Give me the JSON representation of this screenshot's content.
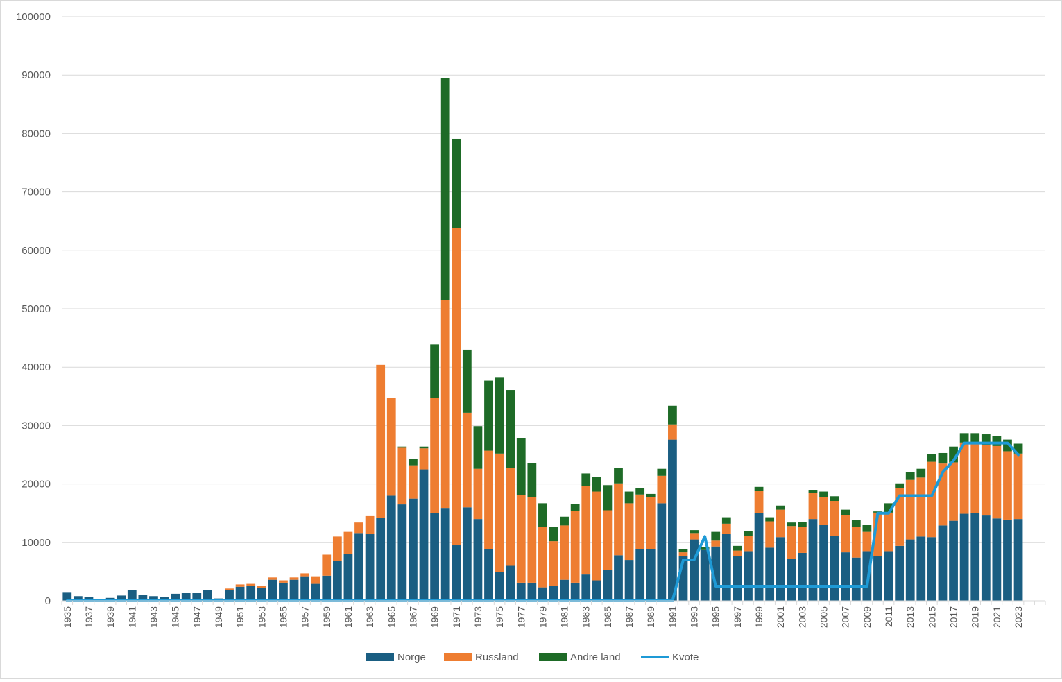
{
  "chart_data": {
    "type": "bar",
    "stacked": true,
    "title": "",
    "xlabel": "",
    "ylabel": "",
    "ylim": [
      0,
      100000
    ],
    "yticks": [
      0,
      10000,
      20000,
      30000,
      40000,
      50000,
      60000,
      70000,
      80000,
      90000,
      100000
    ],
    "grid": true,
    "legend_position": "bottom",
    "years": [
      1935,
      1936,
      1937,
      1938,
      1939,
      1940,
      1941,
      1942,
      1943,
      1944,
      1945,
      1946,
      1947,
      1948,
      1949,
      1950,
      1951,
      1952,
      1953,
      1954,
      1955,
      1956,
      1957,
      1958,
      1959,
      1960,
      1961,
      1962,
      1963,
      1964,
      1965,
      1966,
      1967,
      1968,
      1969,
      1970,
      1971,
      1972,
      1973,
      1974,
      1975,
      1976,
      1977,
      1978,
      1979,
      1980,
      1981,
      1982,
      1983,
      1984,
      1985,
      1986,
      1987,
      1988,
      1989,
      1990,
      1991,
      1992,
      1993,
      1994,
      1995,
      1996,
      1997,
      1998,
      1999,
      2000,
      2001,
      2002,
      2003,
      2004,
      2005,
      2006,
      2007,
      2008,
      2009,
      2010,
      2011,
      2012,
      2013,
      2014,
      2015,
      2016,
      2017,
      2018,
      2019,
      2020,
      2021,
      2022,
      2023
    ],
    "tick_labels": [
      "1935",
      "1937",
      "1939",
      "1941",
      "1943",
      "1945",
      "1947",
      "1949",
      "1951",
      "1953",
      "1955",
      "1957",
      "1959",
      "1961",
      "1963",
      "1965",
      "1967",
      "1969",
      "1971",
      "1973",
      "1975",
      "1977",
      "1979",
      "1981",
      "1983",
      "1985",
      "1987",
      "1989",
      "1991",
      "1993",
      "1995",
      "1997",
      "1999",
      "2001",
      "2003",
      "2005",
      "2007",
      "2009",
      "2011",
      "2013",
      "2015",
      "2017",
      "2019",
      "2021",
      "2023"
    ],
    "series": [
      {
        "name": "Norge",
        "color": "#1a5e82",
        "values": [
          1500,
          800,
          700,
          300,
          500,
          900,
          1800,
          1000,
          800,
          700,
          1200,
          1400,
          1400,
          1900,
          400,
          1900,
          2400,
          2500,
          2200,
          3600,
          3100,
          3600,
          4200,
          2900,
          4300,
          6800,
          8000,
          11600,
          11400,
          14200,
          18000,
          16500,
          17500,
          22500,
          15000,
          15900,
          9500,
          16000,
          14000,
          8900,
          4900,
          6000,
          3100,
          3100,
          2300,
          2600,
          3600,
          3100,
          4500,
          3500,
          5300,
          7800,
          7000,
          8900,
          8800,
          16700,
          27600,
          7600,
          10500,
          8700,
          9300,
          11500,
          7600,
          8500,
          15000,
          9100,
          10900,
          7200,
          8200,
          14000,
          13000,
          11100,
          8300,
          7400,
          8500,
          7600,
          8500,
          9400,
          10500,
          11000,
          10900,
          12900,
          13700,
          14900,
          15000,
          14600,
          14100,
          13900,
          14000
        ]
      },
      {
        "name": "Russland",
        "color": "#ee7d31",
        "values": [
          0,
          0,
          0,
          0,
          0,
          0,
          0,
          0,
          0,
          0,
          0,
          0,
          0,
          0,
          0,
          200,
          400,
          400,
          400,
          400,
          400,
          400,
          500,
          1300,
          3600,
          4200,
          3800,
          1800,
          3100,
          26200,
          16700,
          9700,
          5700,
          3600,
          19700,
          35600,
          54300,
          16200,
          8600,
          16800,
          20300,
          16700,
          15000,
          14600,
          10400,
          7600,
          9300,
          12300,
          15200,
          15200,
          10200,
          12300,
          9700,
          9300,
          8900,
          4700,
          2600,
          700,
          1100,
          0,
          1000,
          1700,
          1000,
          2600,
          3800,
          4500,
          4700,
          5600,
          4400,
          4500,
          4800,
          6000,
          6400,
          5200,
          3300,
          7500,
          6600,
          9900,
          10200,
          10100,
          12900,
          10600,
          10000,
          12200,
          11900,
          12100,
          12400,
          11700,
          11200
        ]
      },
      {
        "name": "Andre land",
        "color": "#1e6b27",
        "values": [
          0,
          0,
          0,
          0,
          0,
          0,
          0,
          0,
          0,
          0,
          0,
          0,
          0,
          0,
          0,
          0,
          0,
          0,
          0,
          0,
          0,
          0,
          0,
          0,
          0,
          0,
          0,
          0,
          0,
          0,
          0,
          200,
          1100,
          300,
          9200,
          38000,
          15300,
          10800,
          7300,
          12000,
          13000,
          13400,
          9700,
          5900,
          4000,
          2400,
          1500,
          1200,
          2100,
          2500,
          4300,
          2600,
          2000,
          1100,
          600,
          1200,
          3200,
          500,
          500,
          500,
          1500,
          1100,
          800,
          800,
          700,
          700,
          700,
          600,
          900,
          500,
          900,
          800,
          900,
          1200,
          1200,
          200,
          1600,
          800,
          1300,
          1500,
          1300,
          1800,
          2700,
          1600,
          1800,
          1800,
          1700,
          2000,
          1700
        ]
      }
    ],
    "line_series": {
      "name": "Kvote",
      "color": "#1e9ad6",
      "values": [
        0,
        0,
        0,
        0,
        0,
        0,
        0,
        0,
        0,
        0,
        0,
        0,
        0,
        0,
        0,
        0,
        0,
        0,
        0,
        0,
        0,
        0,
        0,
        0,
        0,
        0,
        0,
        0,
        0,
        0,
        0,
        0,
        0,
        0,
        0,
        0,
        0,
        0,
        0,
        0,
        0,
        0,
        0,
        0,
        0,
        0,
        0,
        0,
        0,
        0,
        0,
        0,
        0,
        0,
        0,
        0,
        0,
        7000,
        7000,
        11000,
        2500,
        2500,
        2500,
        2500,
        2500,
        2500,
        2500,
        2500,
        2500,
        2500,
        2500,
        2500,
        2500,
        2500,
        2500,
        15000,
        15000,
        18000,
        18000,
        18000,
        18000,
        22000,
        24000,
        27000,
        27000,
        27000,
        27000,
        27000,
        25000
      ]
    }
  }
}
